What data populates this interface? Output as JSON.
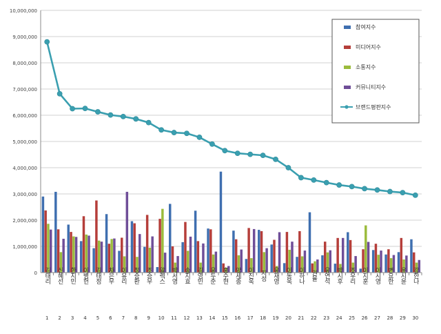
{
  "chart_data": {
    "type": "bar",
    "ylim": [
      0,
      10000000
    ],
    "yticks": [
      0,
      1000000,
      2000000,
      3000000,
      4000000,
      5000000,
      6000000,
      7000000,
      8000000,
      9000000,
      10000000
    ],
    "ytick_labels": [
      "0",
      "1,000,000",
      "2,000,000",
      "3,000,000",
      "4,000,000",
      "5,000,000",
      "6,000,000",
      "7,000,000",
      "8,000,000",
      "9,000,000",
      "10,000,000"
    ],
    "grid": true,
    "legend_position": "top-right",
    "names": [
      "김태리",
      "신혜선",
      "한지민",
      "이병헌",
      "김태정",
      "차은우",
      "이유리",
      "정승환",
      "조승우",
      "알렉스",
      "박서영",
      "송지효",
      "김영민",
      "유두준",
      "홍수현",
      "양세종",
      "이진욱",
      "지성",
      "유재영",
      "이동욱",
      "이하나",
      "권율",
      "유연석",
      "박시후",
      "조우리",
      "이지훈",
      "이시영",
      "변요한",
      "윤시윤",
      "강한나"
    ],
    "ranks": [
      "1",
      "2",
      "3",
      "4",
      "5",
      "6",
      "7",
      "8",
      "9",
      "10",
      "11",
      "12",
      "13",
      "14",
      "15",
      "16",
      "17",
      "18",
      "19",
      "20",
      "21",
      "22",
      "23",
      "24",
      "25",
      "26",
      "27",
      "28",
      "29",
      "30"
    ],
    "series": [
      {
        "name": "참여지수",
        "color": "#3f6fb0",
        "values": [
          2900000,
          3080000,
          1830000,
          1200000,
          930000,
          2230000,
          830000,
          1960000,
          980000,
          210000,
          2620000,
          1160000,
          2360000,
          1680000,
          3850000,
          1600000,
          520000,
          1630000,
          1070000,
          360000,
          600000,
          2300000,
          660000,
          340000,
          1540000,
          150000,
          860000,
          690000,
          780000,
          1270000
        ]
      },
      {
        "name": "미디어지수",
        "color": "#b53e3a",
        "values": [
          2370000,
          1650000,
          1550000,
          2150000,
          2750000,
          1100000,
          1330000,
          1880000,
          2200000,
          2050000,
          1000000,
          1930000,
          1200000,
          1650000,
          350000,
          1270000,
          1700000,
          1580000,
          1250000,
          1550000,
          1580000,
          350000,
          1180000,
          1320000,
          1240000,
          890000,
          1100000,
          890000,
          1320000,
          770000
        ]
      },
      {
        "name": "소통지수",
        "color": "#9bbb3c",
        "values": [
          1860000,
          780000,
          1380000,
          1450000,
          1220000,
          1280000,
          620000,
          600000,
          950000,
          2430000,
          380000,
          830000,
          380000,
          690000,
          180000,
          660000,
          550000,
          780000,
          250000,
          870000,
          620000,
          430000,
          770000,
          330000,
          380000,
          1800000,
          680000,
          550000,
          500000,
          380000
        ]
      },
      {
        "name": "커뮤니티지수",
        "color": "#6f4e98",
        "values": [
          1640000,
          1290000,
          1360000,
          1410000,
          1180000,
          1300000,
          3080000,
          1470000,
          1380000,
          760000,
          630000,
          1370000,
          1110000,
          800000,
          250000,
          880000,
          1660000,
          930000,
          1540000,
          1180000,
          840000,
          500000,
          850000,
          1320000,
          630000,
          1170000,
          840000,
          670000,
          650000,
          480000
        ]
      }
    ],
    "line": {
      "name": "브랜드평판지수",
      "color": "#3a9fb0",
      "values": [
        8800000,
        6820000,
        6250000,
        6260000,
        6130000,
        6010000,
        5950000,
        5860000,
        5720000,
        5440000,
        5340000,
        5310000,
        5160000,
        4900000,
        4650000,
        4550000,
        4510000,
        4470000,
        4320000,
        4000000,
        3620000,
        3530000,
        3430000,
        3340000,
        3280000,
        3200000,
        3150000,
        3090000,
        3050000,
        2950000
      ]
    }
  }
}
